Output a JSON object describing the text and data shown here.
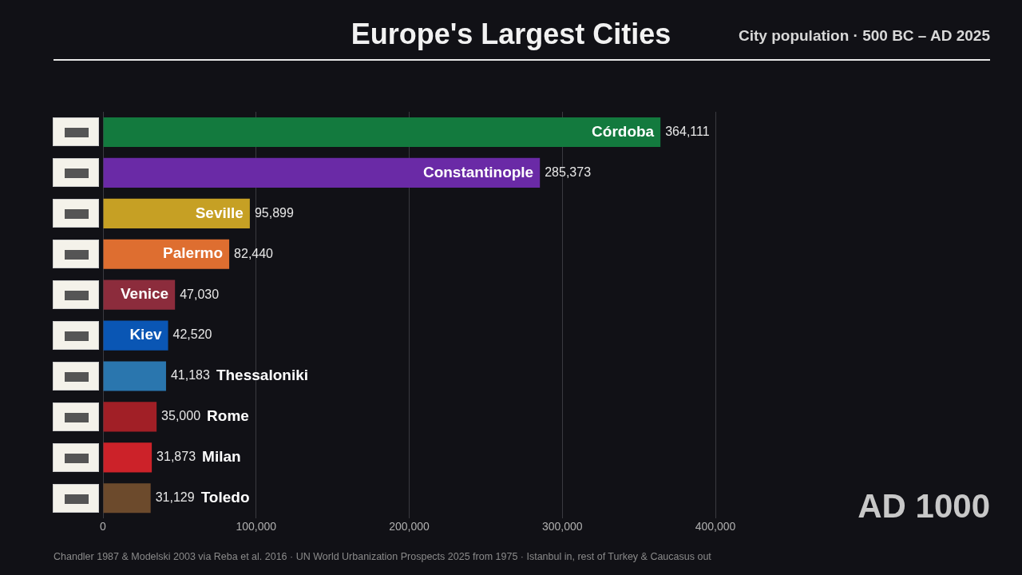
{
  "chart_data": {
    "type": "bar",
    "orientation": "horizontal",
    "title": "Europe's Largest Cities",
    "subtitle": "City population · 500 BC – AD 2025",
    "categories": [
      "Córdoba",
      "Constantinople",
      "Seville",
      "Palermo",
      "Venice",
      "Kiev",
      "Thessaloniki",
      "Rome",
      "Milan",
      "Toledo"
    ],
    "values": [
      364111,
      285373,
      95899,
      82440,
      47030,
      42520,
      41183,
      35000,
      31873,
      31129
    ],
    "colors": [
      "#137a3e",
      "#6a2aa6",
      "#c6a024",
      "#de6e30",
      "#8c2c3c",
      "#0a56b4",
      "#2a76ae",
      "#a11f26",
      "#cc2229",
      "#6c4a2c"
    ],
    "value_labels": [
      "364,111",
      "285,373",
      "95,899",
      "82,440",
      "47,030",
      "42,520",
      "41,183",
      "35,000",
      "31,873",
      "31,129"
    ],
    "xlim": [
      0,
      400000
    ],
    "xticks": [
      {
        "value": 0,
        "label": "0"
      },
      {
        "value": 100000,
        "label": "100,000"
      },
      {
        "value": 200000,
        "label": "200,000"
      },
      {
        "value": 300000,
        "label": "300,000"
      },
      {
        "value": 400000,
        "label": "400,000"
      }
    ],
    "grid": "x",
    "tick_labels": "x",
    "annotations": [
      "AD 1000",
      "Chandler 1987 & Modelski 2003 via Reba et al. 2016 · UN World Urbanization Prospects 2025 from 1975 · Istanbul in, rest of Turkey & Caucasus out"
    ]
  }
}
